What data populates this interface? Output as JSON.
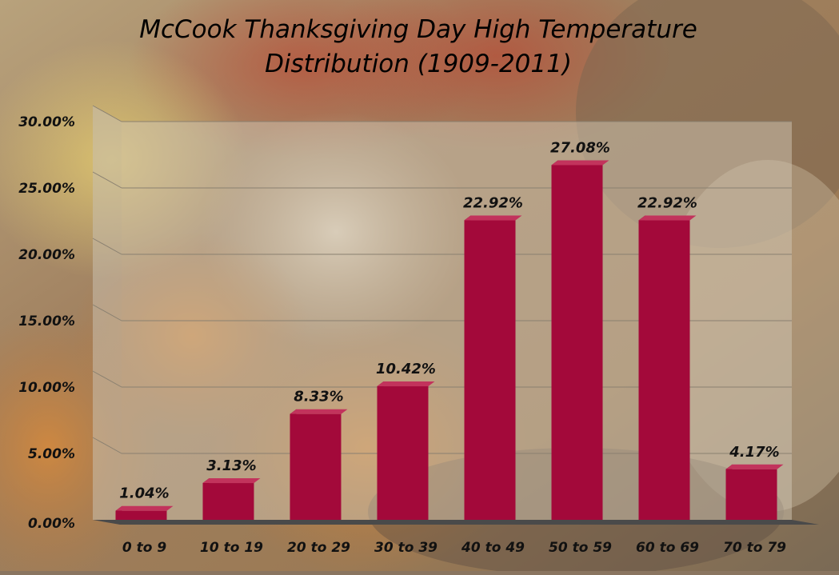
{
  "chart_data": {
    "type": "bar",
    "title_line1": "McCook Thanksgiving Day High Temperature",
    "title_line2": "Distribution (1909-2011)",
    "xlabel": "",
    "ylabel": "",
    "categories": [
      "0 to 9",
      "10 to 19",
      "20 to 29",
      "30 to 39",
      "40 to 49",
      "50 to 59",
      "60 to 69",
      "70 to 79"
    ],
    "values": [
      1.04,
      3.13,
      8.33,
      10.42,
      22.92,
      27.08,
      22.92,
      4.17
    ],
    "data_labels": [
      "1.04%",
      "3.13%",
      "8.33%",
      "10.42%",
      "22.92%",
      "27.08%",
      "22.92%",
      "4.17%"
    ],
    "ylim": [
      0,
      30
    ],
    "yticks": [
      "0.00%",
      "5.00%",
      "10.00%",
      "15.00%",
      "20.00%",
      "25.00%",
      "30.00%"
    ],
    "grid": true,
    "legend": "none",
    "colors": {
      "bar_front": "#a3093a",
      "bar_side": "#6d0022",
      "bar_top": "#c2335c",
      "floor": "#4a4a4a"
    }
  }
}
